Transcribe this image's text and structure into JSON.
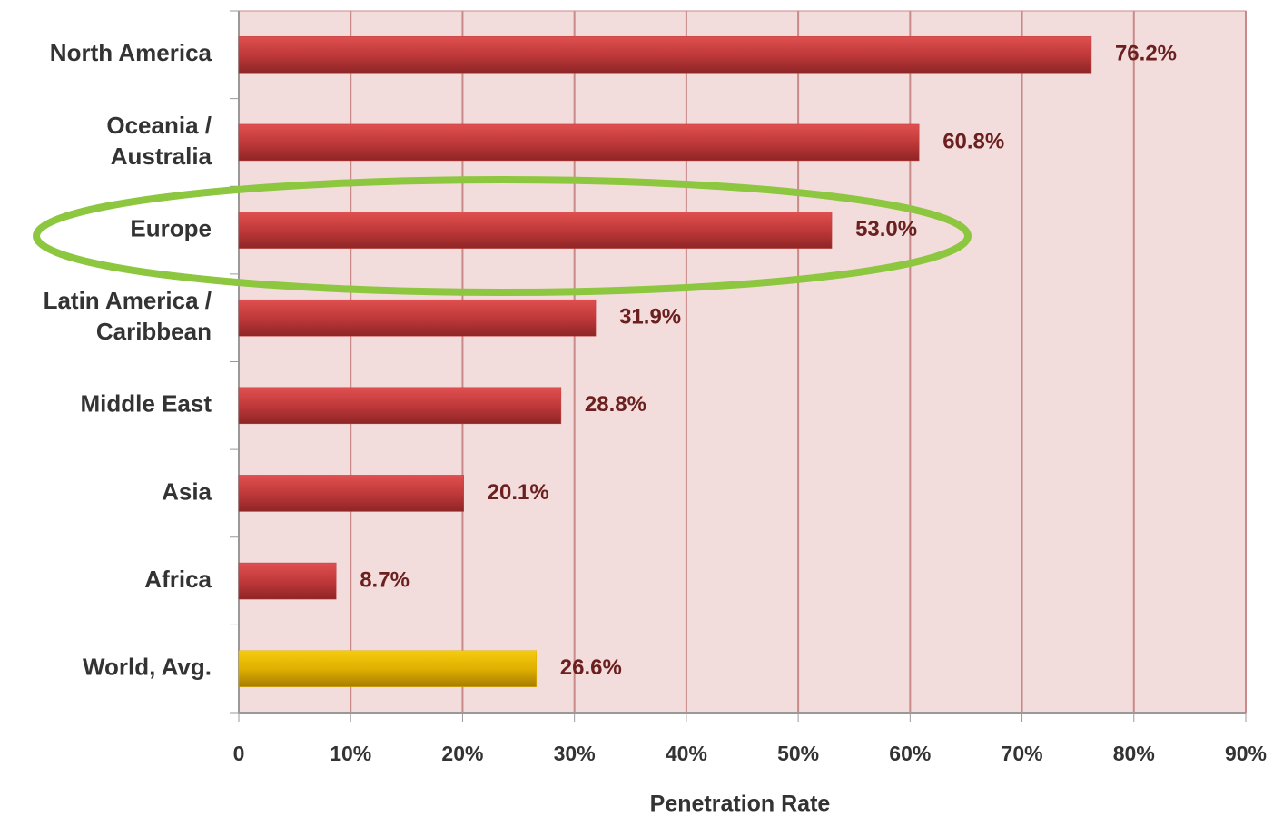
{
  "chart_data": {
    "type": "hbar",
    "categories": [
      "North America",
      "Oceania  /\nAustralia",
      "Europe",
      "Latin America /\nCaribbean",
      "Middle East",
      "Asia",
      "Africa",
      "World, Avg."
    ],
    "values": [
      76.2,
      60.8,
      53.0,
      31.9,
      28.8,
      20.1,
      8.7,
      26.6
    ],
    "value_labels": [
      "76.2%",
      "60.8%",
      "53.0%",
      "31.9%",
      "28.8%",
      "20.1%",
      "8.7%",
      "26.6%"
    ],
    "colors": [
      "#c0393a",
      "#c0393a",
      "#c0393a",
      "#c0393a",
      "#c0393a",
      "#c0393a",
      "#c0393a",
      "#e0b000"
    ],
    "xlabel": "Penetration Rate",
    "xlim": [
      0,
      90
    ],
    "xticks": [
      0,
      {
        "value": 10,
        "label": "10%"
      },
      {
        "value": 20,
        "label": "20%"
      },
      {
        "value": 30,
        "label": "30%"
      },
      {
        "value": 40,
        "label": "40%"
      },
      {
        "value": 50,
        "label": "50%"
      },
      {
        "value": 60,
        "label": "60%"
      },
      {
        "value": 70,
        "label": "70%"
      },
      {
        "value": 80,
        "label": "80%"
      },
      {
        "value": 90,
        "label": "90%"
      }
    ],
    "grid": true
  }
}
